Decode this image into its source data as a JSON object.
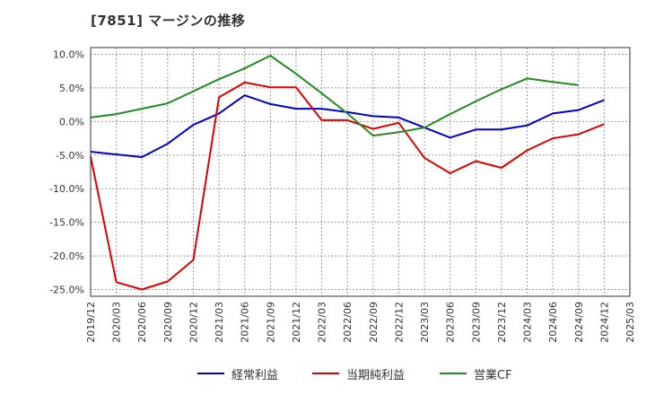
{
  "chart_data": {
    "type": "line",
    "title": "[7851]  マージンの推移",
    "x": [
      "2019/12",
      "2020/03",
      "2020/06",
      "2020/09",
      "2020/12",
      "2021/03",
      "2021/06",
      "2021/09",
      "2021/12",
      "2022/03",
      "2022/06",
      "2022/09",
      "2022/12",
      "2023/03",
      "2023/06",
      "2023/09",
      "2023/12",
      "2024/03",
      "2024/06",
      "2024/09",
      "2024/12",
      "2025/03"
    ],
    "yticks": [
      "10.0%",
      "5.0%",
      "0.0%",
      "-5.0%",
      "-10.0%",
      "-15.0%",
      "-20.0%",
      "-25.0%"
    ],
    "ylim": [
      -26,
      11
    ],
    "grid": true,
    "legend_position": "bottom",
    "series": [
      {
        "name": "経常利益",
        "color": "#0000cc",
        "values": [
          -4.5,
          -4.9,
          -5.3,
          -3.3,
          -0.5,
          1.2,
          3.9,
          2.6,
          1.9,
          1.9,
          1.4,
          0.8,
          0.6,
          -0.9,
          -2.4,
          -1.2,
          -1.2,
          -0.6,
          1.2,
          1.7,
          3.2,
          null
        ]
      },
      {
        "name": "当期純利益",
        "color": "#dd0000",
        "values": [
          -5.2,
          -23.9,
          -25.0,
          -23.8,
          -20.6,
          3.6,
          5.8,
          5.1,
          5.1,
          0.2,
          0.2,
          -1.1,
          -0.2,
          -5.4,
          -7.7,
          -5.9,
          -6.9,
          -4.3,
          -2.5,
          -1.9,
          -0.4,
          null
        ]
      },
      {
        "name": "営業CF",
        "color": "#228b22",
        "values": [
          0.6,
          1.1,
          1.9,
          2.7,
          4.5,
          6.3,
          7.9,
          9.8,
          7.1,
          4.2,
          1.2,
          -2.1,
          -1.6,
          -0.9,
          1.1,
          3.0,
          4.8,
          6.4,
          5.9,
          5.4,
          null,
          null
        ]
      }
    ]
  }
}
